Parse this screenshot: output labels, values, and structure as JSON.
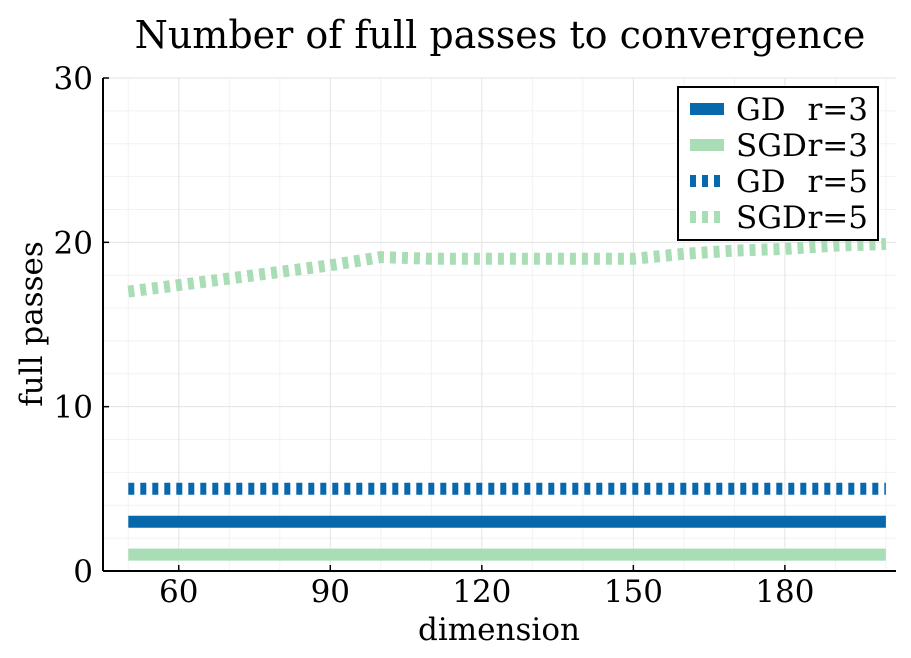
{
  "chart_data": {
    "type": "line",
    "title": "Number of full passes to convergence",
    "xlabel": "dimension",
    "ylabel": "full passes",
    "xlim": [
      45,
      202
    ],
    "ylim": [
      0,
      30
    ],
    "xticks": [
      60,
      90,
      120,
      150,
      180
    ],
    "yticks": [
      0,
      10,
      20,
      30
    ],
    "grid": true,
    "legend_position": "top-right",
    "series": [
      {
        "name": "GD r=3",
        "legend_method": "GD",
        "legend_param": "r=3",
        "color": "#0868ac",
        "style": "solid",
        "x": [
          50,
          200
        ],
        "y": [
          3,
          3
        ]
      },
      {
        "name": "SGD r=3",
        "legend_method": "SGD",
        "legend_param": "r=3",
        "color": "#a8ddb5",
        "style": "solid",
        "x": [
          50,
          200
        ],
        "y": [
          1,
          1
        ]
      },
      {
        "name": "GD r=5",
        "legend_method": "GD",
        "legend_param": "r=5",
        "color": "#0868ac",
        "style": "dotted",
        "x": [
          50,
          200
        ],
        "y": [
          5,
          5
        ]
      },
      {
        "name": "SGD r=5",
        "legend_method": "SGD",
        "legend_param": "r=5",
        "color": "#a8ddb5",
        "style": "dotted",
        "x": [
          50,
          60,
          70,
          80,
          90,
          100,
          110,
          120,
          130,
          140,
          150,
          160,
          170,
          180,
          190,
          200
        ],
        "y": [
          17,
          17.4,
          17.8,
          18.2,
          18.6,
          19.1,
          19.0,
          19.0,
          19.0,
          19.0,
          19.0,
          19.3,
          19.5,
          19.6,
          19.8,
          19.9
        ]
      }
    ]
  }
}
